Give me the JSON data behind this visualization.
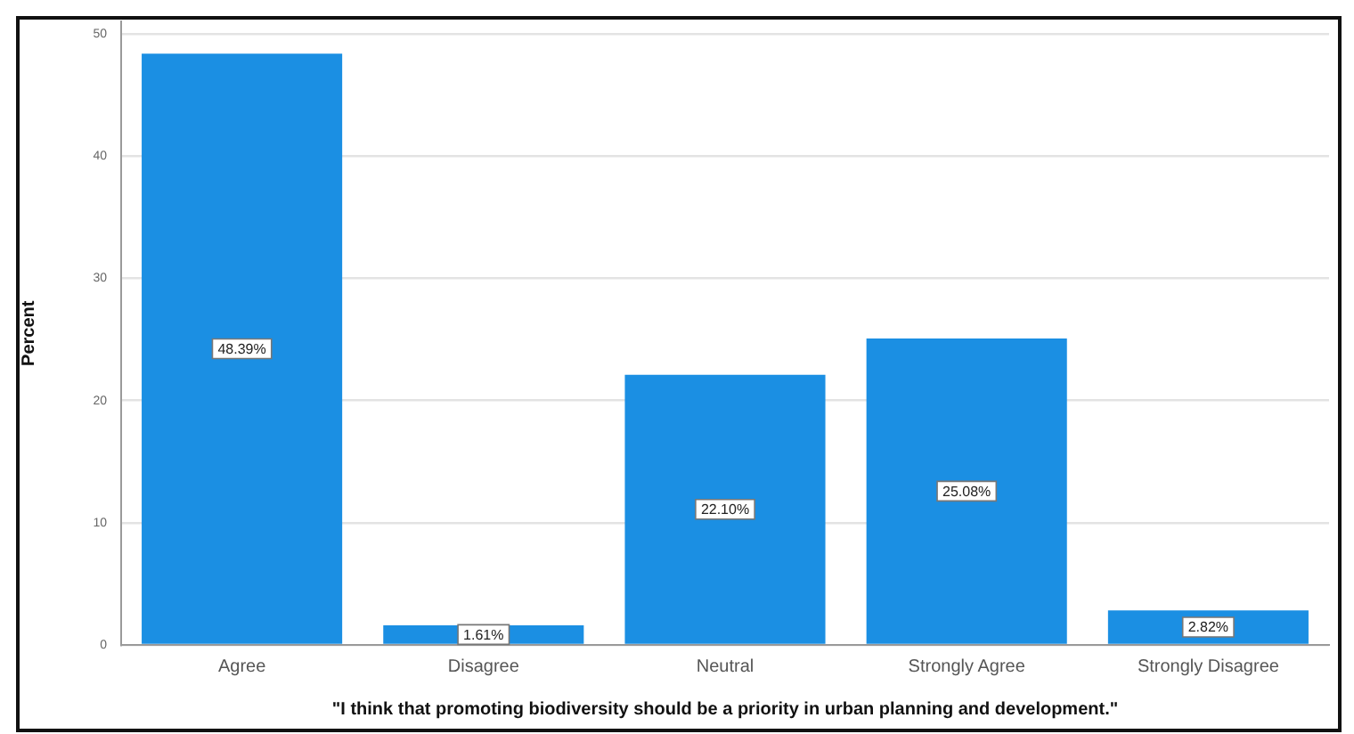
{
  "chart_data": {
    "type": "bar",
    "xlabel": "\"I think that promoting biodiversity should be a priority in urban planning and development.\"",
    "ylabel": "Percent",
    "categories": [
      "Agree",
      "Disagree",
      "Neutral",
      "Strongly Agree",
      "Strongly Disagree"
    ],
    "values": [
      48.39,
      1.61,
      22.1,
      25.08,
      2.82
    ],
    "value_labels": [
      "48.39%",
      "1.61%",
      "22.10%",
      "25.08%",
      "2.82%"
    ],
    "color": "#1b8fe3",
    "ylim": [
      0,
      51
    ],
    "yticks": [
      0,
      10,
      20,
      30,
      40,
      50
    ],
    "grid": "y"
  }
}
